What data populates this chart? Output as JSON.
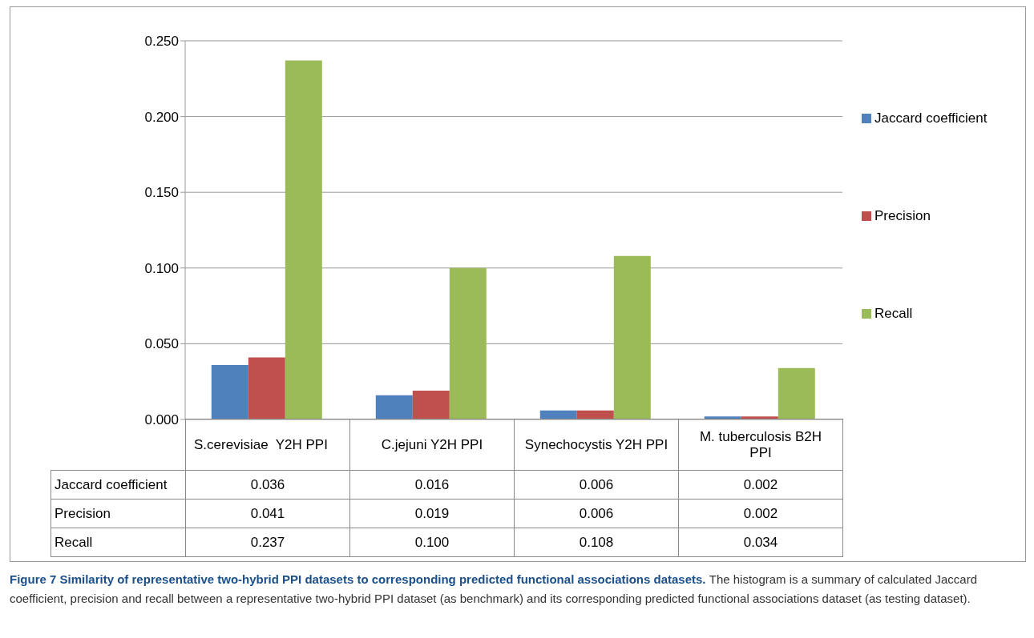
{
  "chart_data": {
    "type": "bar",
    "categories": [
      "S.cerevisiae  Y2H PPI",
      "C.jejuni Y2H PPI",
      "Synechocystis Y2H PPI",
      "M. tuberculosis B2H PPI"
    ],
    "series": [
      {
        "name": "Jaccard coefficient",
        "color": "#4f81bd",
        "values": [
          0.036,
          0.016,
          0.006,
          0.002
        ],
        "value_labels": [
          "0.036",
          "0.016",
          "0.006",
          "0.002"
        ]
      },
      {
        "name": "Precision",
        "color": "#c0504d",
        "values": [
          0.041,
          0.019,
          0.006,
          0.002
        ],
        "value_labels": [
          "0.041",
          "0.019",
          "0.006",
          "0.002"
        ]
      },
      {
        "name": "Recall",
        "color": "#9bbb59",
        "values": [
          0.237,
          0.1,
          0.108,
          0.034
        ],
        "value_labels": [
          "0.237",
          "0.100",
          "0.108",
          "0.034"
        ]
      }
    ],
    "ylim": [
      0,
      0.25
    ],
    "yticks": [
      {
        "value": 0,
        "label": "0.000"
      },
      {
        "value": 0.05,
        "label": "0.050"
      },
      {
        "value": 0.1,
        "label": "0.100"
      },
      {
        "value": 0.15,
        "label": "0.150"
      },
      {
        "value": 0.2,
        "label": "0.200"
      },
      {
        "value": 0.25,
        "label": "0.250"
      }
    ],
    "grid": "y",
    "legend": "right",
    "annotations": [
      "Figure 7 Similarity of representative two-hybrid PPI datasets to corresponding predicted functional associations datasets.",
      "The histogram is a summary of calculated Jaccard coefficient, precision and recall between a representative two-hybrid PPI dataset (as benchmark) and its corresponding predicted functional associations dataset (as testing dataset)."
    ]
  }
}
